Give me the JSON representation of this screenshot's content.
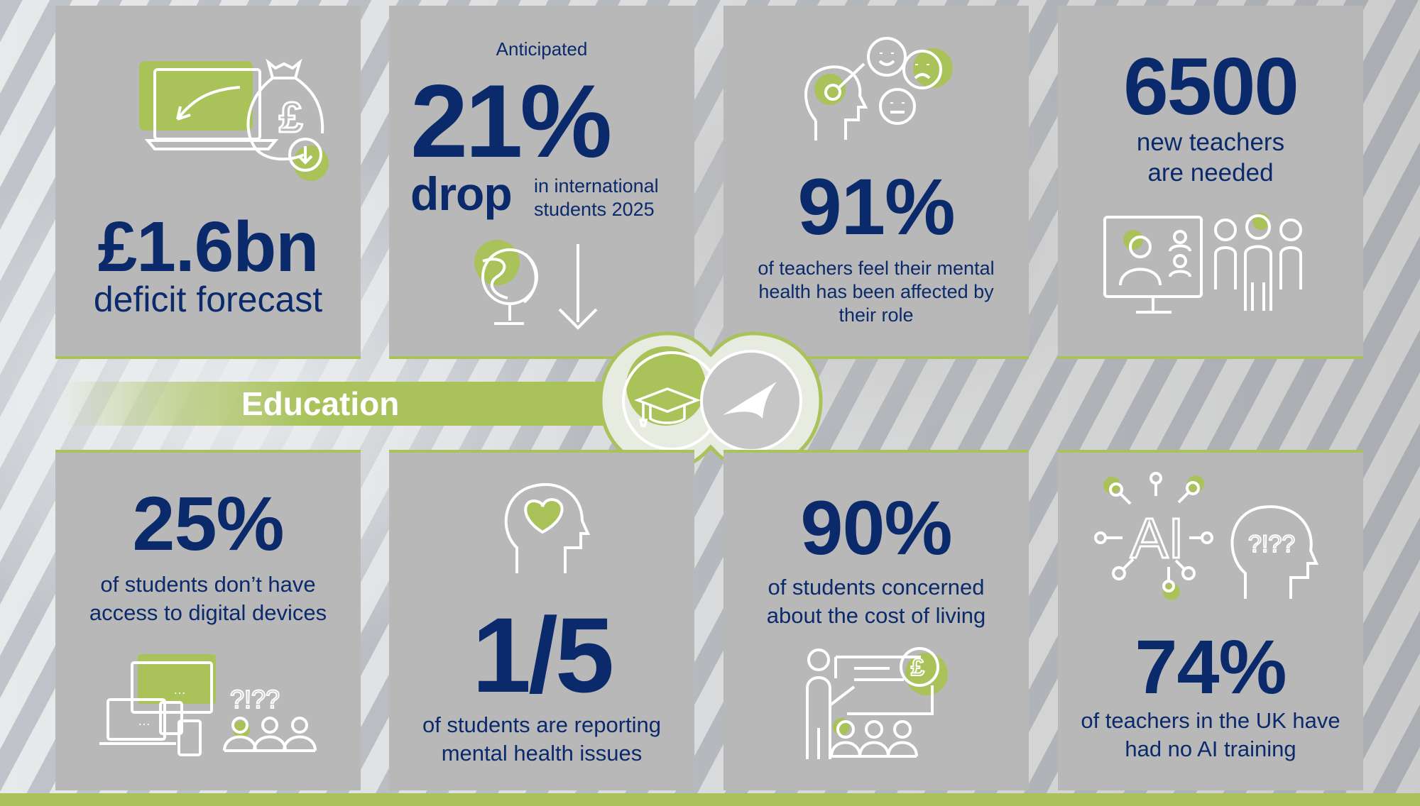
{
  "title": "Education",
  "colors": {
    "navy": "#0b2a6b",
    "green": "#a9c25a",
    "panel": "#b8b8b8"
  },
  "panels": [
    {
      "stat": "£1.6bn",
      "caption": "deficit forecast",
      "icon": "laptop-money-bag-icon"
    },
    {
      "pre": "Anticipated",
      "stat": "21%",
      "stat2": "drop",
      "caption": "in international students 2025",
      "icon": "globe-down-arrow-icon"
    },
    {
      "stat": "91%",
      "caption": "of teachers feel their mental health has been affected by their role",
      "icon": "head-emotions-icon"
    },
    {
      "stat": "6500",
      "caption": "new teachers are needed",
      "icon": "video-call-group-icon"
    },
    {
      "stat": "25%",
      "caption": "of students don’t have access to digital devices",
      "icon": "devices-question-icon",
      "glyphs": {
        "dots": "…",
        "question": "?!??"
      }
    },
    {
      "stat": "1/5",
      "caption": "of students are reporting mental health issues",
      "icon": "head-heart-icon"
    },
    {
      "stat": "90%",
      "caption": "of students concerned about the cost of living",
      "icon": "presenter-pound-icon"
    },
    {
      "stat": "74%",
      "caption": "of teachers in the UK have had no AI training",
      "icon": "ai-head-question-icon",
      "glyphs": {
        "ai": "AI",
        "question": "?!??"
      }
    }
  ],
  "center_badge": {
    "icons": [
      "graduation-cap-icon",
      "swoosh-logo-icon"
    ]
  }
}
